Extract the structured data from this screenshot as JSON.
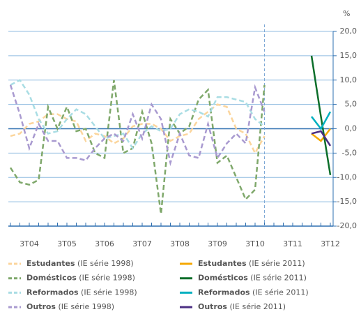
{
  "chart_data": {
    "type": "line",
    "y_unit": "%",
    "categories": [
      null,
      null,
      "3T04",
      null,
      null,
      null,
      "3T05",
      null,
      null,
      null,
      "3T06",
      null,
      null,
      null,
      "3T07",
      null,
      null,
      null,
      "3T08",
      null,
      null,
      null,
      "3T09",
      null,
      null,
      null,
      "3T10",
      null,
      null,
      null,
      "3T11",
      null,
      null,
      null,
      "3T12"
    ],
    "ylim": [
      -20,
      20
    ],
    "yticks": [
      {
        "value": 20,
        "label": "20,0"
      },
      {
        "value": 15,
        "label": "15,0"
      },
      {
        "value": 10,
        "label": "10,0"
      },
      {
        "value": 5,
        "label": "5,0"
      },
      {
        "value": 0,
        "label": "0,0"
      },
      {
        "value": -5,
        "label": "-5,0"
      },
      {
        "value": -10,
        "label": "-10,0"
      },
      {
        "value": -15,
        "label": "-15,0"
      },
      {
        "value": -20,
        "label": "-20,0"
      }
    ],
    "grid": true,
    "series": [
      {
        "name": "Estudantes (IE série 1998)",
        "color": "#fbd59c",
        "style": "dashed",
        "values": [
          -1.5,
          -1,
          1,
          1.5,
          3,
          3,
          2,
          1.5,
          -2.5,
          -1,
          -1.5,
          -3,
          -2,
          0.5,
          1,
          1,
          0,
          -2.5,
          -1.5,
          -1,
          2,
          3.5,
          5,
          4.5,
          0,
          -1,
          -5,
          -1.5,
          null,
          null,
          null,
          null,
          null,
          null,
          null
        ]
      },
      {
        "name": "Domésticos (IE série 1998)",
        "color": "#7fa86b",
        "style": "dashed",
        "values": [
          -8,
          -11,
          -11.5,
          -10.5,
          4.5,
          0,
          4.5,
          -0.5,
          0,
          -5,
          -6,
          10,
          -5,
          -4,
          3.5,
          -3,
          -17.5,
          2,
          -1,
          0.5,
          6,
          8,
          -7,
          -5.5,
          -10,
          -14.5,
          -12.5,
          9,
          null,
          null,
          null,
          null,
          null,
          null,
          null
        ]
      },
      {
        "name": "Reformados (IE série 1998)",
        "color": "#a9dde4",
        "style": "dashed",
        "values": [
          9,
          10,
          7,
          2,
          -1,
          -0.5,
          2,
          4,
          3,
          0.5,
          -2,
          -1.5,
          -1,
          -4,
          -1,
          0.5,
          -0.5,
          0,
          3,
          4,
          3.5,
          2.5,
          6.5,
          6.5,
          6,
          5.5,
          2,
          0.5,
          null,
          null,
          null,
          null,
          null,
          null,
          null
        ]
      },
      {
        "name": "Outros (IE série 1998)",
        "color": "#a99ad0",
        "style": "dashed",
        "values": [
          9,
          3,
          -4,
          1,
          -2.5,
          -2.5,
          -6,
          -6,
          -6.5,
          -4,
          -2,
          -1,
          -2.5,
          3,
          -2,
          5,
          2,
          -7,
          -1,
          -5.5,
          -6,
          1,
          -6,
          -3,
          -1,
          -3,
          8.5,
          3.5,
          null,
          null,
          null,
          null,
          null,
          null,
          null
        ]
      },
      {
        "name": "Estudantes (IE série 2011)",
        "color": "#f5a800",
        "style": "solid",
        "values": [
          null,
          null,
          null,
          null,
          null,
          null,
          null,
          null,
          null,
          null,
          null,
          null,
          null,
          null,
          null,
          null,
          null,
          null,
          null,
          null,
          null,
          null,
          null,
          null,
          null,
          null,
          null,
          null,
          null,
          null,
          null,
          null,
          -1,
          -2.5,
          0
        ]
      },
      {
        "name": "Domésticos (IE série 2011)",
        "color": "#0b6e2a",
        "style": "solid",
        "values": [
          null,
          null,
          null,
          null,
          null,
          null,
          null,
          null,
          null,
          null,
          null,
          null,
          null,
          null,
          null,
          null,
          null,
          null,
          null,
          null,
          null,
          null,
          null,
          null,
          null,
          null,
          null,
          null,
          null,
          null,
          null,
          null,
          15,
          2.5,
          -9.5
        ]
      },
      {
        "name": "Reformados (IE série 2011)",
        "color": "#00b0c0",
        "style": "solid",
        "values": [
          null,
          null,
          null,
          null,
          null,
          null,
          null,
          null,
          null,
          null,
          null,
          null,
          null,
          null,
          null,
          null,
          null,
          null,
          null,
          null,
          null,
          null,
          null,
          null,
          null,
          null,
          null,
          null,
          null,
          null,
          null,
          null,
          2.5,
          0,
          3.5
        ]
      },
      {
        "name": "Outros (IE série 2011)",
        "color": "#4b2e83",
        "style": "solid",
        "values": [
          null,
          null,
          null,
          null,
          null,
          null,
          null,
          null,
          null,
          null,
          null,
          null,
          null,
          null,
          null,
          null,
          null,
          null,
          null,
          null,
          null,
          null,
          null,
          null,
          null,
          null,
          null,
          null,
          null,
          null,
          null,
          null,
          -1,
          -0.5,
          -3.5
        ]
      }
    ]
  }
}
